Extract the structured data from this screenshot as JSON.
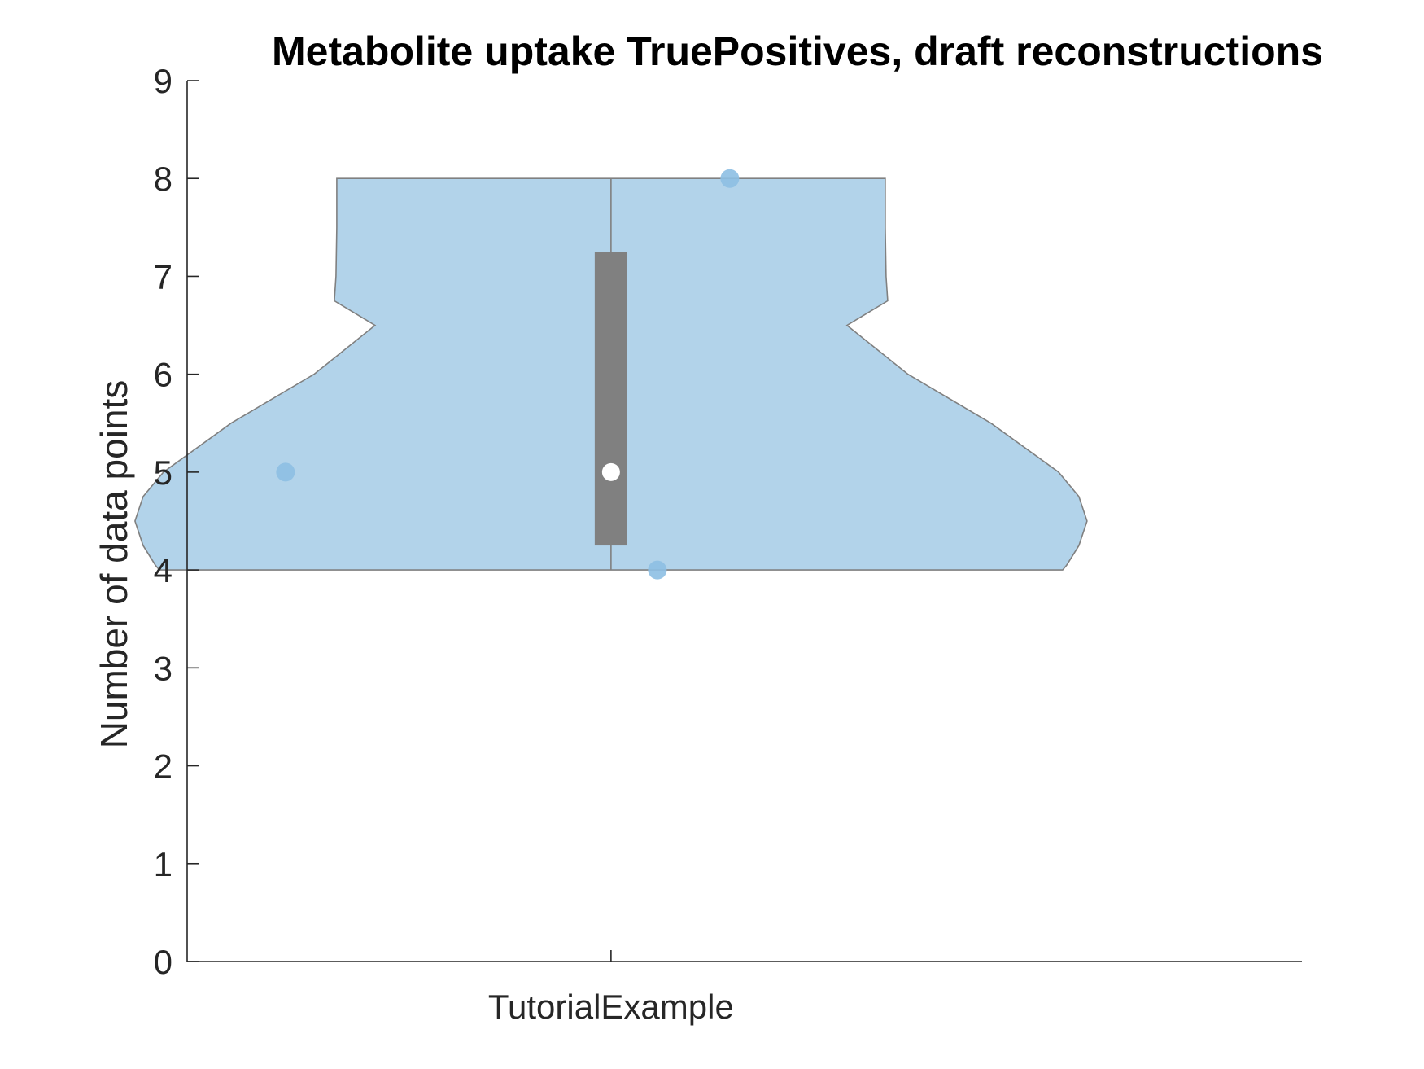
{
  "chart_data": {
    "type": "violin",
    "title": "Metabolite uptake TruePositives, draft reconstructions",
    "xlabel": "",
    "ylabel": "Number of data points",
    "categories": [
      "TutorialExample"
    ],
    "ylim": [
      0,
      9
    ],
    "yticks": [
      "0",
      "1",
      "2",
      "3",
      "4",
      "5",
      "6",
      "7",
      "8",
      "9"
    ],
    "grid": false,
    "series": [
      {
        "category": "TutorialExample",
        "points": [
          5,
          4,
          8
        ],
        "median": 5,
        "q1": 4.25,
        "q3": 7.25,
        "min": 4,
        "max": 8
      }
    ],
    "colors": {
      "violin_fill": "#b2d3ea",
      "violin_edge": "#808080",
      "points": "#8dbfe3",
      "box": "#808080",
      "median": "#ffffff",
      "axis": "#262626"
    }
  }
}
